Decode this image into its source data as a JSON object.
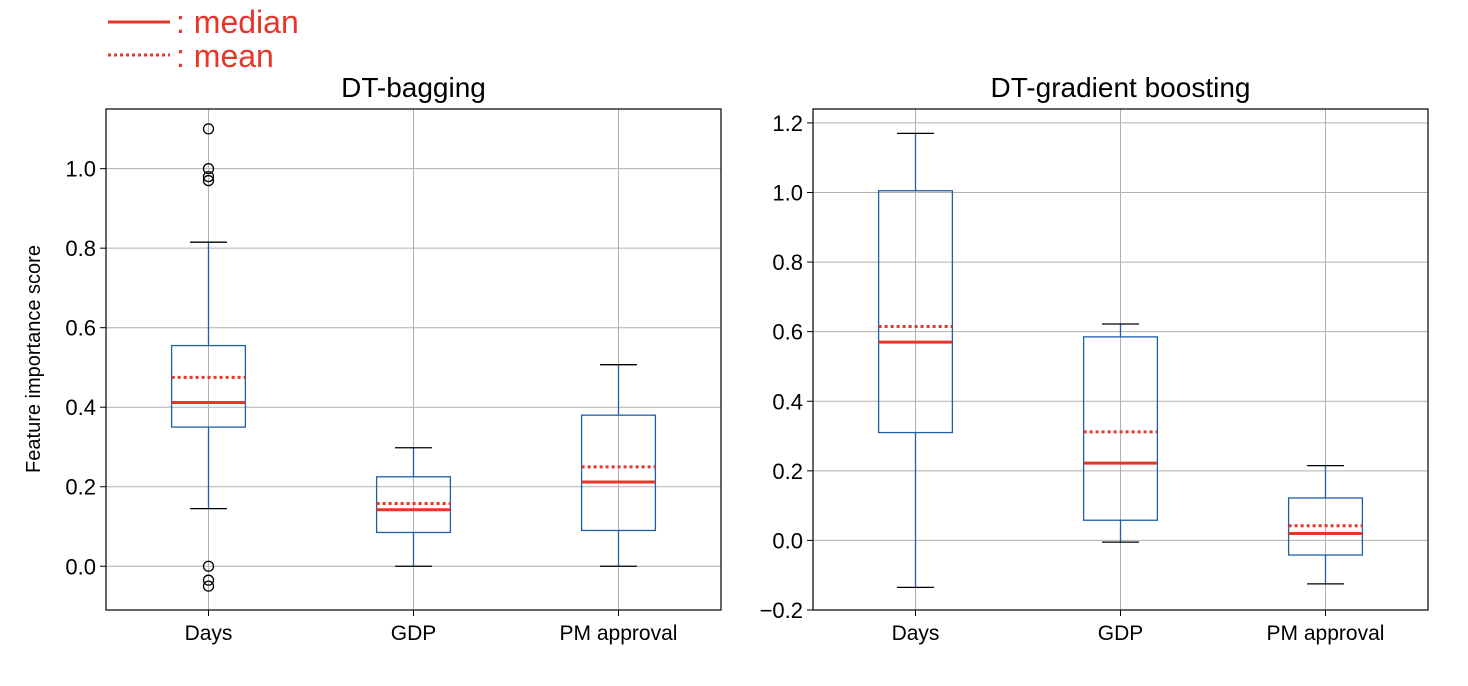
{
  "legend": {
    "median_label": ": median",
    "mean_label": ": mean"
  },
  "colors": {
    "box": "#1f5fa8",
    "median": "#e8352a",
    "mean": "#e8352a",
    "grid": "#b0b0b0",
    "axis": "#000000",
    "flier": "#000000"
  },
  "chart_data": [
    {
      "type": "box",
      "title": "DT-bagging",
      "xlabel": "",
      "ylabel": "Feature importance score",
      "ylim": [
        -0.11,
        1.15
      ],
      "yticks": [
        0.0,
        0.2,
        0.4,
        0.6,
        0.8,
        1.0
      ],
      "ytick_labels": [
        "0.0",
        "0.2",
        "0.4",
        "0.6",
        "0.8",
        "1.0"
      ],
      "grid": true,
      "categories": [
        "Days",
        "GDP",
        "PM approval"
      ],
      "boxes": [
        {
          "name": "Days",
          "whisker_low": 0.145,
          "q1": 0.35,
          "median": 0.412,
          "q3": 0.555,
          "whisker_high": 0.815,
          "mean": 0.475,
          "fliers": [
            1.1,
            1.0,
            0.97,
            0.98,
            0.0,
            -0.035,
            -0.05
          ]
        },
        {
          "name": "GDP",
          "whisker_low": 0.0,
          "q1": 0.085,
          "median": 0.142,
          "q3": 0.225,
          "whisker_high": 0.298,
          "mean": 0.158,
          "fliers": []
        },
        {
          "name": "PM approval",
          "whisker_low": 0.0,
          "q1": 0.09,
          "median": 0.212,
          "q3": 0.38,
          "whisker_high": 0.507,
          "mean": 0.25,
          "fliers": []
        }
      ]
    },
    {
      "type": "box",
      "title": "DT-gradient boosting",
      "xlabel": "",
      "ylabel": "",
      "ylim": [
        -0.2,
        1.24
      ],
      "yticks": [
        -0.2,
        0.0,
        0.2,
        0.4,
        0.6,
        0.8,
        1.0,
        1.2
      ],
      "ytick_labels": [
        "−0.2",
        "0.0",
        "0.2",
        "0.4",
        "0.6",
        "0.8",
        "1.0",
        "1.2"
      ],
      "grid": true,
      "categories": [
        "Days",
        "GDP",
        "PM approval"
      ],
      "boxes": [
        {
          "name": "Days",
          "whisker_low": -0.135,
          "q1": 0.31,
          "median": 0.57,
          "q3": 1.005,
          "whisker_high": 1.17,
          "mean": 0.615,
          "fliers": []
        },
        {
          "name": "GDP",
          "whisker_low": -0.005,
          "q1": 0.058,
          "median": 0.222,
          "q3": 0.585,
          "whisker_high": 0.622,
          "mean": 0.312,
          "fliers": []
        },
        {
          "name": "PM approval",
          "whisker_low": -0.125,
          "q1": -0.042,
          "median": 0.02,
          "q3": 0.122,
          "whisker_high": 0.215,
          "mean": 0.042,
          "fliers": []
        }
      ]
    }
  ]
}
